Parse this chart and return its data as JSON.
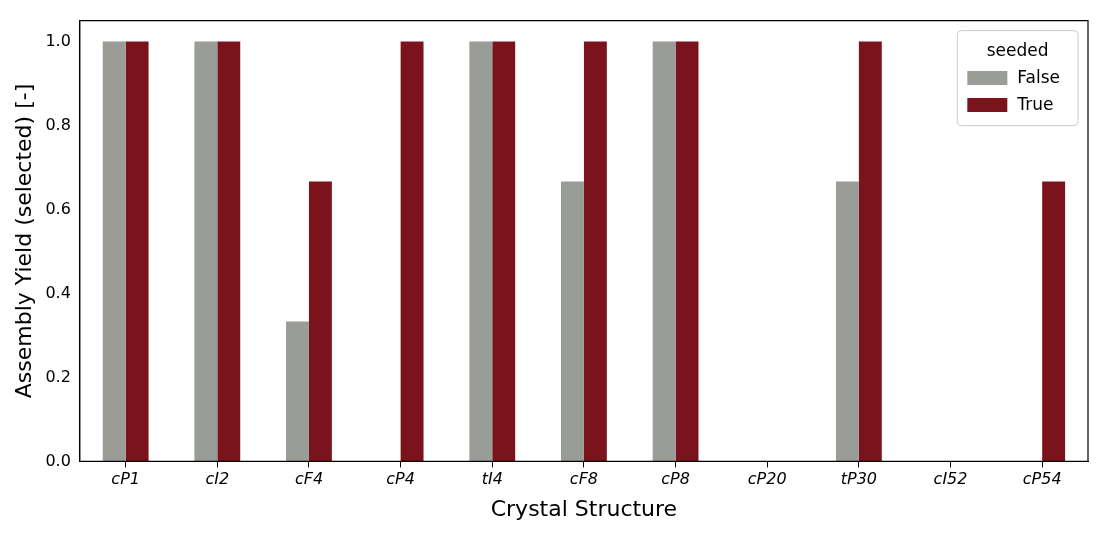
{
  "chart_data": {
    "type": "bar",
    "xlabel": "Crystal Structure",
    "ylabel": "Assembly Yield (selected) [-]",
    "legend_title": "seeded",
    "legend": "top right",
    "grid": false,
    "categories": [
      "cP1",
      "cI2",
      "cF4",
      "cP4",
      "tI4",
      "cF8",
      "cP8",
      "cP20",
      "tP30",
      "cI52",
      "cP54"
    ],
    "ylim": [
      0,
      1.05
    ],
    "yticks": [
      {
        "value": 0,
        "label": "0.0"
      },
      {
        "value": 0.2,
        "label": "0.2"
      },
      {
        "value": 0.4,
        "label": "0.4"
      },
      {
        "value": 0.6,
        "label": "0.6"
      },
      {
        "value": 0.8,
        "label": "0.8"
      },
      {
        "value": 1,
        "label": "1.0"
      }
    ],
    "series": [
      {
        "name": "False",
        "color": "#999c97",
        "values": [
          1,
          1,
          0.333,
          0,
          1,
          0.667,
          1,
          0,
          0.667,
          0,
          0
        ]
      },
      {
        "name": "True",
        "color": "#7b131c",
        "values": [
          1,
          1,
          0.667,
          1,
          1,
          1,
          1,
          0,
          1,
          0,
          0.667
        ]
      }
    ]
  }
}
